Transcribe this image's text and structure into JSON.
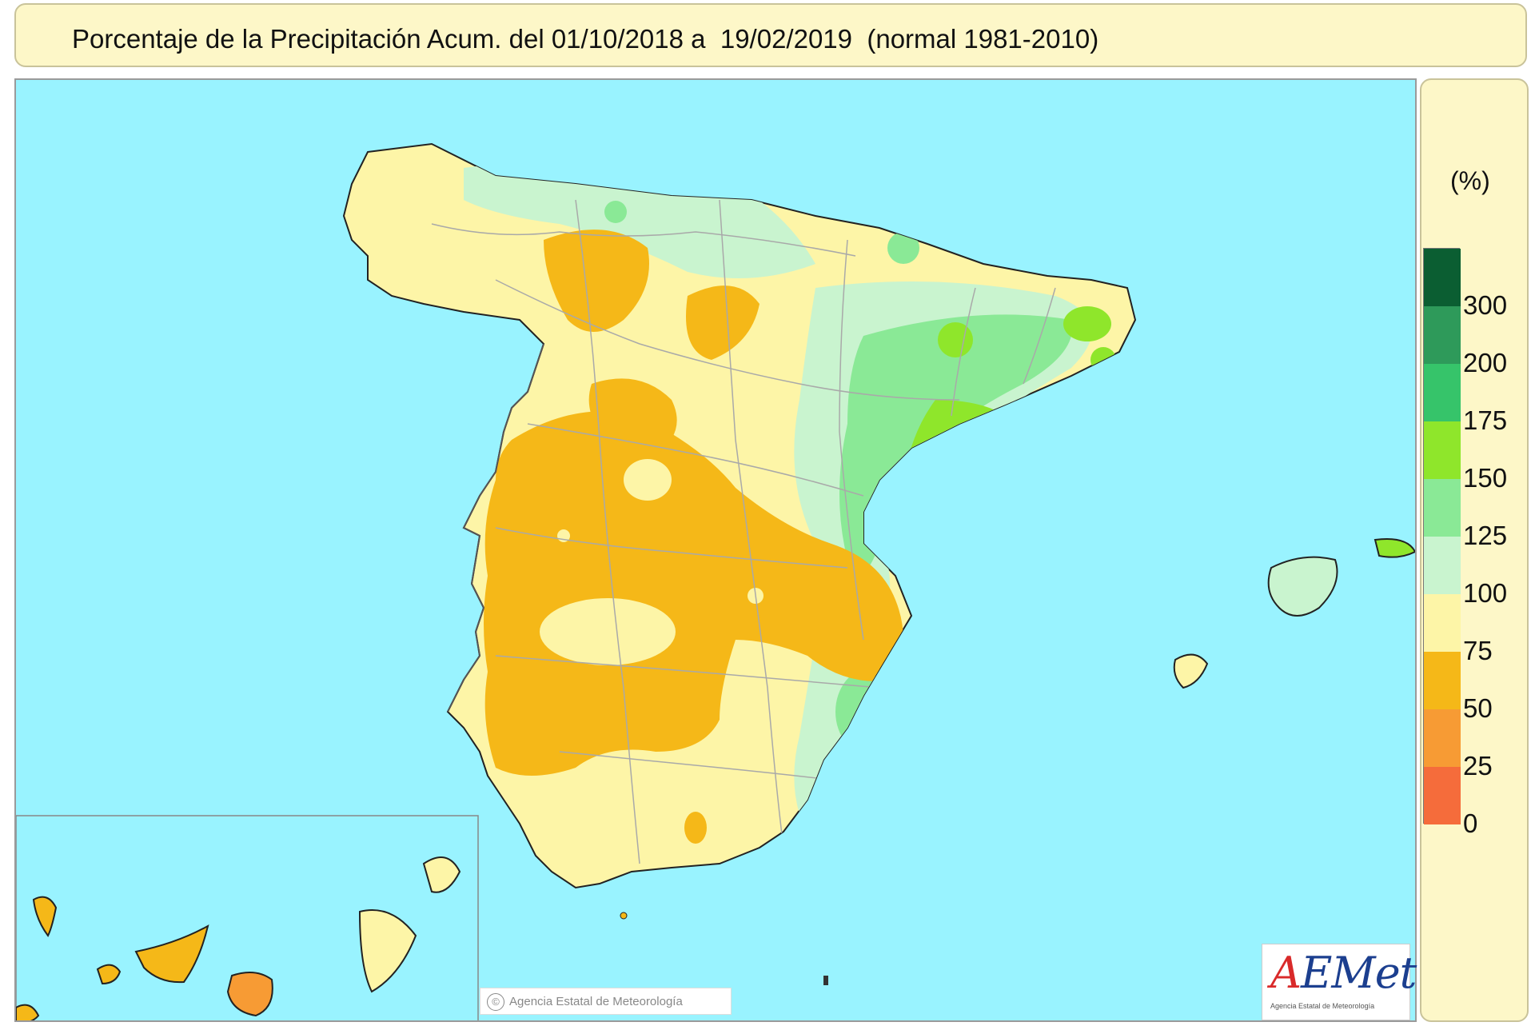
{
  "header": {
    "title": "Porcentaje de la Precipitación Acum. del 01/10/2018 a  19/02/2019  (normal 1981-2010)"
  },
  "legend": {
    "unit": "(%)",
    "classes": [
      {
        "label": "300",
        "color": "#0b5e32"
      },
      {
        "label": "200",
        "color": "#2e9a5a"
      },
      {
        "label": "175",
        "color": "#36c46a"
      },
      {
        "label": "150",
        "color": "#8fe62b"
      },
      {
        "label": "125",
        "color": "#8ae996"
      },
      {
        "label": "100",
        "color": "#c9f4cf"
      },
      {
        "label": "75",
        "color": "#fdf5a7"
      },
      {
        "label": "50",
        "color": "#f5b818"
      },
      {
        "label": "25",
        "color": "#f79b34"
      },
      {
        "label": "0",
        "color": "#f56c3b"
      }
    ],
    "bottom_color": "#f5582c"
  },
  "map": {
    "sea_color": "#99f3ff",
    "copyright": "Agencia Estatal de Meteorología",
    "copyright_symbol": "©"
  },
  "logo": {
    "brand_a": "A",
    "brand_rest": "EMet",
    "subtitle": "Agencia Estatal de Meteorología"
  }
}
